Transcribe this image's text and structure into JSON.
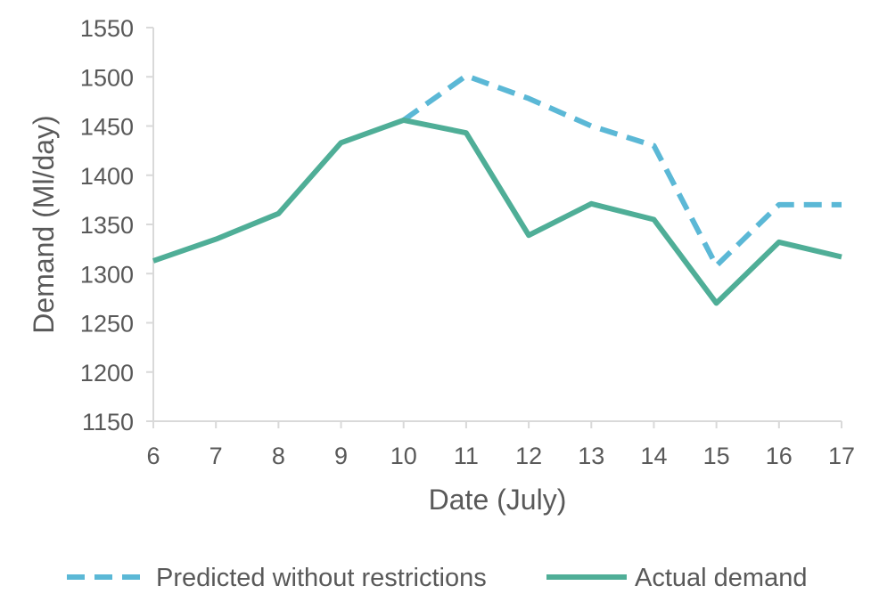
{
  "chart_data": {
    "type": "line",
    "xlabel": "Date (July)",
    "ylabel": "Demand (Ml/day)",
    "x": [
      6,
      7,
      8,
      9,
      10,
      11,
      12,
      13,
      14,
      15,
      16,
      17
    ],
    "xlim": [
      6,
      17
    ],
    "ylim": [
      1150,
      1550
    ],
    "yticks": [
      1150,
      1200,
      1250,
      1300,
      1350,
      1400,
      1450,
      1500,
      1550
    ],
    "grid": false,
    "legend_position": "bottom",
    "series": [
      {
        "name": "Predicted without restrictions",
        "style": "dashed",
        "color": "#5bb8d6",
        "x": [
          10,
          11,
          12,
          13,
          14,
          15,
          16,
          17
        ],
        "values": [
          1456,
          1501,
          1478,
          1450,
          1430,
          1308,
          1370,
          1370
        ]
      },
      {
        "name": "Actual demand",
        "style": "solid",
        "color": "#4fae97",
        "x": [
          6,
          7,
          8,
          9,
          10,
          11,
          12,
          13,
          14,
          15,
          16,
          17
        ],
        "values": [
          1313,
          1335,
          1361,
          1433,
          1456,
          1443,
          1339,
          1371,
          1355,
          1270,
          1332,
          1317
        ]
      }
    ]
  }
}
